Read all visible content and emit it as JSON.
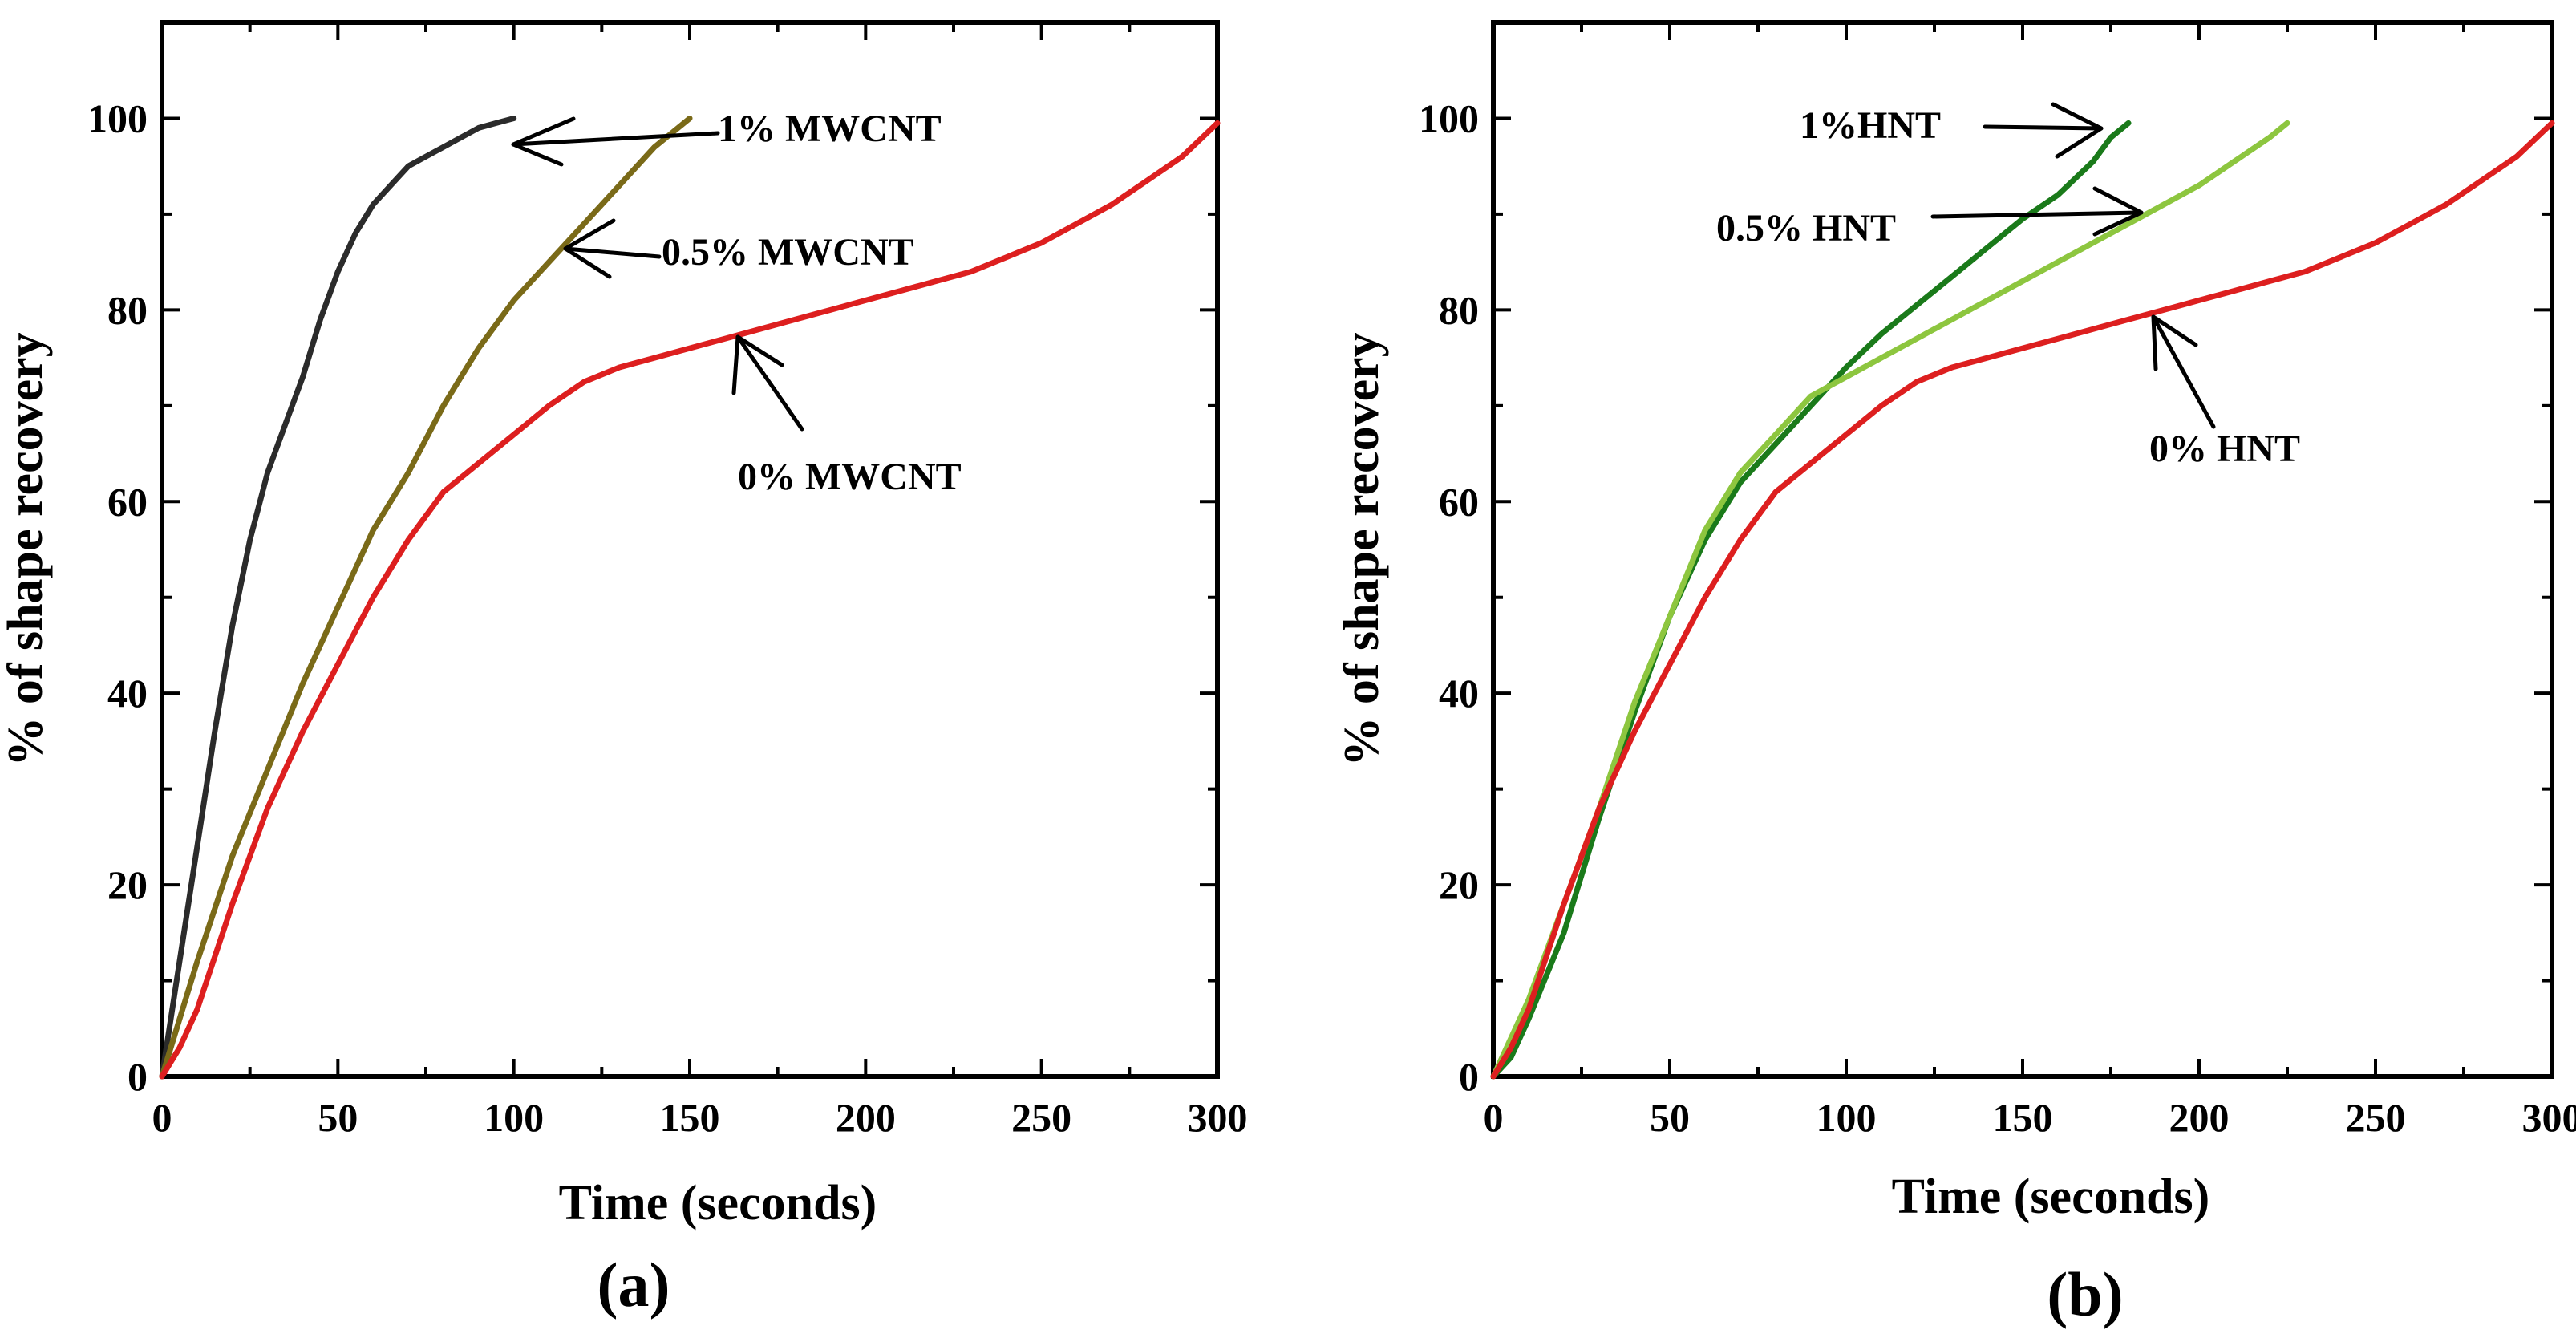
{
  "chart_data": [
    {
      "type": "line",
      "panel_label": "(a)",
      "xlabel": "Time (seconds)",
      "ylabel": "% of shape recovery",
      "xlim": [
        0,
        300
      ],
      "ylim": [
        0,
        110
      ],
      "xticks": [
        0,
        50,
        100,
        150,
        200,
        250,
        300
      ],
      "yticks": [
        0,
        20,
        40,
        60,
        80,
        100
      ],
      "series": [
        {
          "name": "1% MWCNT",
          "color": "#2b2b2b",
          "points": [
            [
              0,
              0
            ],
            [
              5,
              12
            ],
            [
              10,
              24
            ],
            [
              15,
              36
            ],
            [
              20,
              47
            ],
            [
              25,
              56
            ],
            [
              30,
              63
            ],
            [
              35,
              68
            ],
            [
              40,
              73
            ],
            [
              45,
              79
            ],
            [
              50,
              84
            ],
            [
              55,
              88
            ],
            [
              60,
              91
            ],
            [
              65,
              93
            ],
            [
              70,
              95
            ],
            [
              75,
              96
            ],
            [
              80,
              97
            ],
            [
              85,
              98
            ],
            [
              90,
              99
            ],
            [
              95,
              99.5
            ],
            [
              100,
              100
            ]
          ]
        },
        {
          "name": "0.5% MWCNT",
          "color": "#7a6a18",
          "points": [
            [
              0,
              0
            ],
            [
              10,
              12
            ],
            [
              20,
              23
            ],
            [
              30,
              32
            ],
            [
              40,
              41
            ],
            [
              50,
              49
            ],
            [
              60,
              57
            ],
            [
              70,
              63
            ],
            [
              80,
              70
            ],
            [
              90,
              76
            ],
            [
              100,
              81
            ],
            [
              110,
              85
            ],
            [
              120,
              89
            ],
            [
              130,
              93
            ],
            [
              140,
              97
            ],
            [
              150,
              100
            ]
          ]
        },
        {
          "name": "0% MWCNT",
          "color": "#dd1f1f",
          "points": [
            [
              0,
              0
            ],
            [
              5,
              3
            ],
            [
              10,
              7
            ],
            [
              20,
              18
            ],
            [
              30,
              28
            ],
            [
              40,
              36
            ],
            [
              50,
              43
            ],
            [
              60,
              50
            ],
            [
              70,
              56
            ],
            [
              80,
              61
            ],
            [
              90,
              64
            ],
            [
              100,
              67
            ],
            [
              110,
              70
            ],
            [
              120,
              72.5
            ],
            [
              130,
              74
            ],
            [
              140,
              75
            ],
            [
              150,
              76
            ],
            [
              160,
              77
            ],
            [
              170,
              78
            ],
            [
              180,
              79
            ],
            [
              190,
              80
            ],
            [
              200,
              81
            ],
            [
              210,
              82
            ],
            [
              220,
              83
            ],
            [
              230,
              84
            ],
            [
              240,
              85.5
            ],
            [
              250,
              87
            ],
            [
              260,
              89
            ],
            [
              270,
              91
            ],
            [
              280,
              93.5
            ],
            [
              290,
              96
            ],
            [
              300,
              99.5
            ]
          ]
        }
      ],
      "annotations": [
        {
          "text": "1% MWCNT",
          "series": "1% MWCNT"
        },
        {
          "text": "0.5% MWCNT",
          "series": "0.5% MWCNT"
        },
        {
          "text": "0% MWCNT",
          "series": "0% MWCNT"
        }
      ]
    },
    {
      "type": "line",
      "panel_label": "(b)",
      "xlabel": "Time (seconds)",
      "ylabel": "% of shape recovery",
      "xlim": [
        0,
        300
      ],
      "ylim": [
        0,
        110
      ],
      "xticks": [
        0,
        50,
        100,
        150,
        200,
        250,
        300
      ],
      "yticks": [
        0,
        20,
        40,
        60,
        80,
        100
      ],
      "series": [
        {
          "name": "1%HNT",
          "color": "#1a7a1a",
          "points": [
            [
              0,
              0
            ],
            [
              5,
              2
            ],
            [
              10,
              6
            ],
            [
              20,
              15
            ],
            [
              30,
              27
            ],
            [
              40,
              38
            ],
            [
              50,
              48
            ],
            [
              60,
              56
            ],
            [
              70,
              62
            ],
            [
              80,
              66
            ],
            [
              90,
              70
            ],
            [
              100,
              74
            ],
            [
              110,
              77.5
            ],
            [
              120,
              80.5
            ],
            [
              130,
              83.5
            ],
            [
              140,
              86.5
            ],
            [
              150,
              89.5
            ],
            [
              160,
              92
            ],
            [
              170,
              95.5
            ],
            [
              175,
              98
            ],
            [
              180,
              99.5
            ]
          ]
        },
        {
          "name": "0.5% HNT",
          "color": "#8dc63f",
          "points": [
            [
              0,
              0
            ],
            [
              10,
              8
            ],
            [
              20,
              18
            ],
            [
              30,
              28
            ],
            [
              40,
              39
            ],
            [
              50,
              48
            ],
            [
              60,
              57
            ],
            [
              70,
              63
            ],
            [
              80,
              67
            ],
            [
              90,
              71
            ],
            [
              100,
              73
            ],
            [
              110,
              75
            ],
            [
              120,
              77
            ],
            [
              130,
              79
            ],
            [
              140,
              81
            ],
            [
              150,
              83
            ],
            [
              160,
              85
            ],
            [
              170,
              87
            ],
            [
              180,
              89
            ],
            [
              190,
              91
            ],
            [
              200,
              93
            ],
            [
              210,
              95.5
            ],
            [
              220,
              98
            ],
            [
              225,
              99.5
            ]
          ]
        },
        {
          "name": "0% HNT",
          "color": "#dd1f1f",
          "points": [
            [
              0,
              0
            ],
            [
              5,
              3
            ],
            [
              10,
              7
            ],
            [
              20,
              18
            ],
            [
              30,
              28
            ],
            [
              40,
              36
            ],
            [
              50,
              43
            ],
            [
              60,
              50
            ],
            [
              70,
              56
            ],
            [
              80,
              61
            ],
            [
              90,
              64
            ],
            [
              100,
              67
            ],
            [
              110,
              70
            ],
            [
              120,
              72.5
            ],
            [
              130,
              74
            ],
            [
              140,
              75
            ],
            [
              150,
              76
            ],
            [
              160,
              77
            ],
            [
              170,
              78
            ],
            [
              180,
              79
            ],
            [
              190,
              80
            ],
            [
              200,
              81
            ],
            [
              210,
              82
            ],
            [
              220,
              83
            ],
            [
              230,
              84
            ],
            [
              240,
              85.5
            ],
            [
              250,
              87
            ],
            [
              260,
              89
            ],
            [
              270,
              91
            ],
            [
              280,
              93.5
            ],
            [
              290,
              96
            ],
            [
              300,
              99.5
            ]
          ]
        }
      ],
      "annotations": [
        {
          "text": "1%HNT",
          "series": "1%HNT"
        },
        {
          "text": "0.5% HNT",
          "series": "0.5% HNT"
        },
        {
          "text": "0% HNT",
          "series": "0% HNT"
        }
      ]
    }
  ]
}
